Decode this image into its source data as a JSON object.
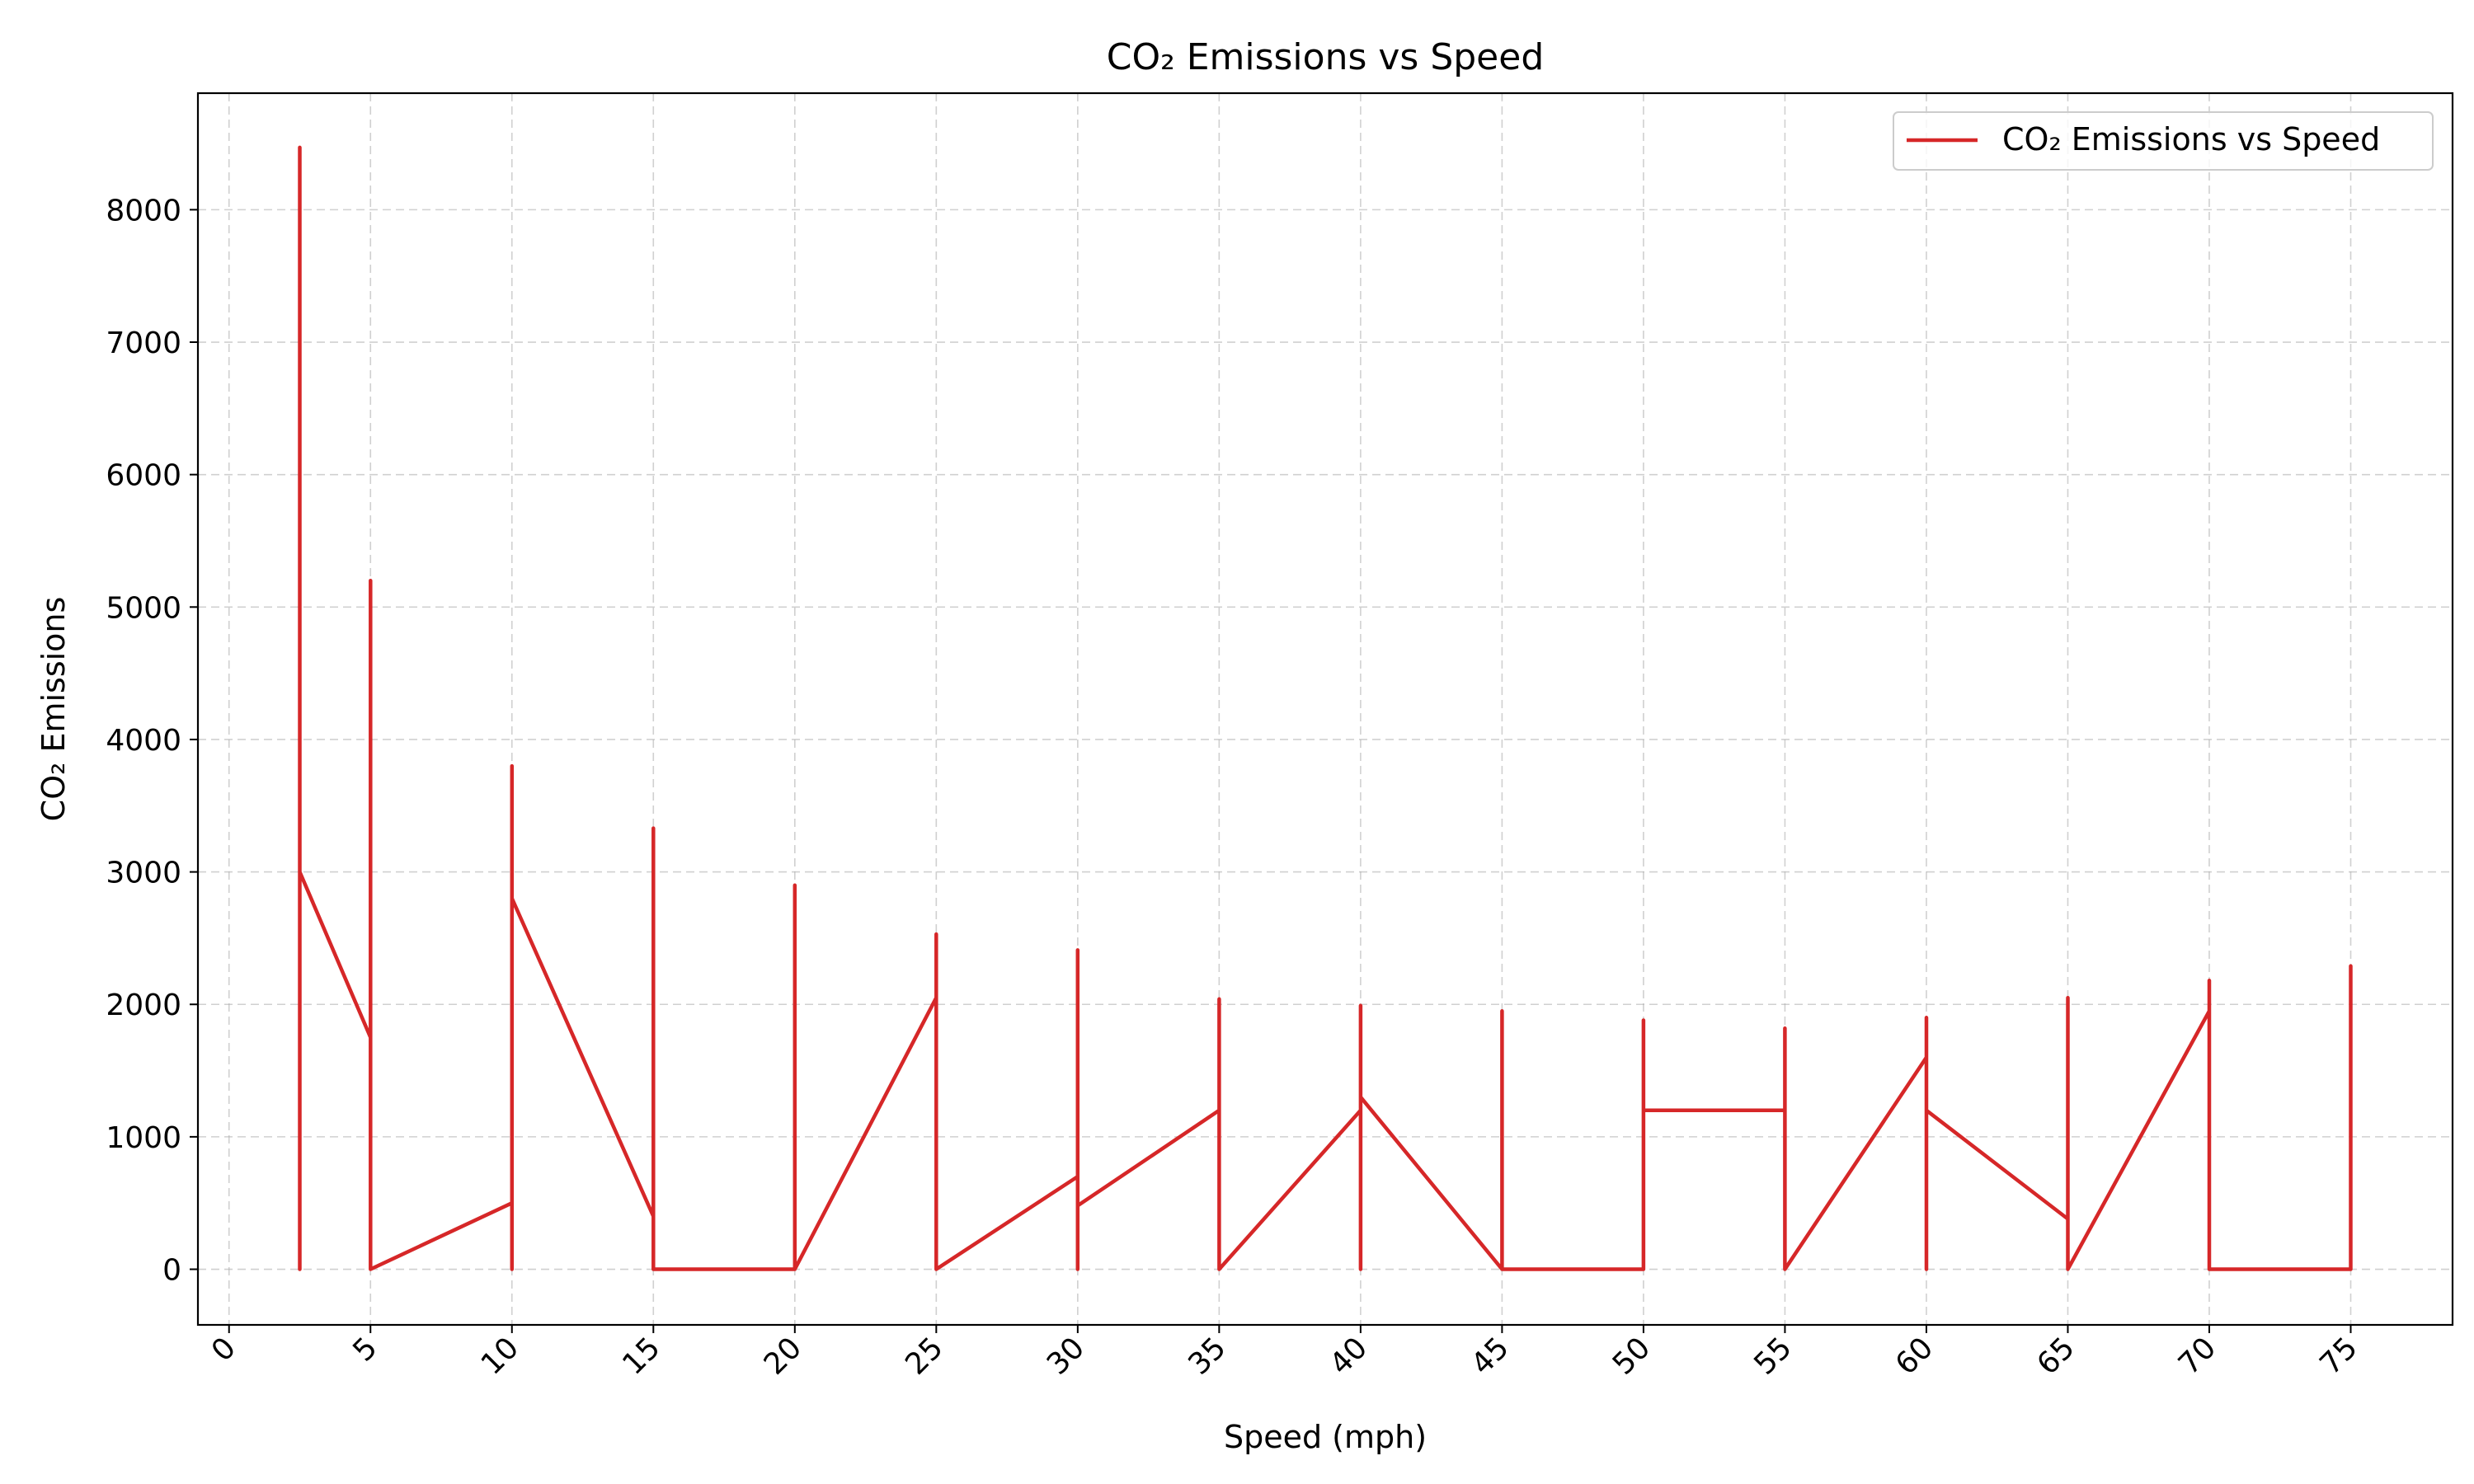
{
  "chart_data": {
    "type": "line",
    "title": "CO₂ Emissions vs Speed",
    "xlabel": "Speed (mph)",
    "ylabel": "CO₂ Emissions",
    "xlim": [
      -1.1,
      78.6
    ],
    "ylim": [
      -420,
      8880
    ],
    "xticks": [
      "0",
      "5",
      "10",
      "15",
      "20",
      "25",
      "30",
      "35",
      "40",
      "45",
      "50",
      "55",
      "60",
      "65",
      "70",
      "75"
    ],
    "yticks": [
      "0",
      "1000",
      "2000",
      "3000",
      "4000",
      "5000",
      "6000",
      "7000",
      "8000"
    ],
    "grid": true,
    "legend_position": "top-right",
    "series": [
      {
        "name": "CO₂ Emissions vs Speed",
        "color": "#d62728",
        "x": [
          2.5,
          2.5,
          2.5,
          5,
          5,
          5,
          10,
          10,
          10,
          10,
          15,
          15,
          15,
          20,
          20,
          20,
          25,
          25,
          25,
          30,
          30,
          30,
          30,
          35,
          35,
          35,
          40,
          40,
          40,
          40,
          45,
          45,
          45,
          50,
          50,
          50,
          55,
          55,
          55,
          60,
          60,
          60,
          60,
          65,
          65,
          65,
          70,
          70,
          70,
          75,
          75
        ],
        "y": [
          0,
          8470,
          3000,
          1750,
          5200,
          0,
          500,
          0,
          3800,
          2800,
          400,
          3330,
          0,
          0,
          2900,
          0,
          2050,
          2530,
          0,
          700,
          2410,
          0,
          480,
          1200,
          2040,
          0,
          1200,
          1990,
          0,
          1300,
          0,
          1950,
          0,
          0,
          1880,
          1200,
          1200,
          1820,
          0,
          1600,
          1900,
          0,
          1200,
          380,
          2050,
          0,
          1950,
          2180,
          0,
          0,
          2290
        ]
      }
    ]
  }
}
